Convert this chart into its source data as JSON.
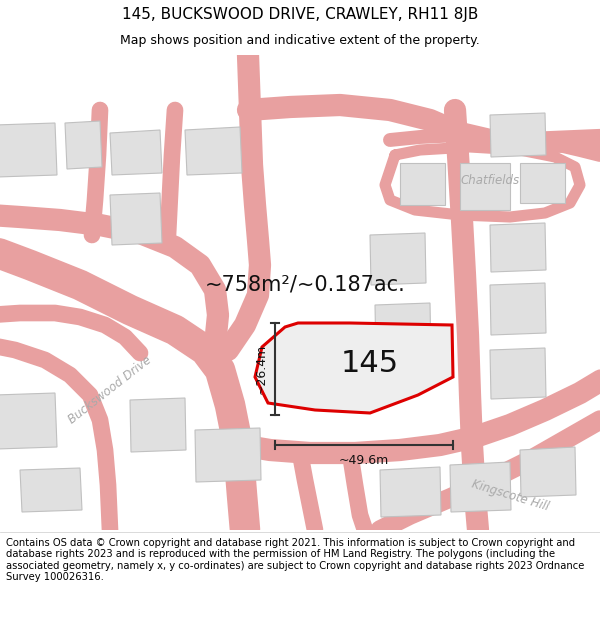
{
  "title": "145, BUCKSWOOD DRIVE, CRAWLEY, RH11 8JB",
  "subtitle": "Map shows position and indicative extent of the property.",
  "area_label": "~758m²/~0.187ac.",
  "plot_number": "145",
  "width_label": "~49.6m",
  "height_label": "~26.4m",
  "street_label_1": "Buckswood Drive",
  "street_label_2": "Chatfields",
  "street_label_3": "Kingscote Hill",
  "footer_text": "Contains OS data © Crown copyright and database right 2021. This information is subject to Crown copyright and database rights 2023 and is reproduced with the permission of HM Land Registry. The polygons (including the associated geometry, namely x, y co-ordinates) are subject to Crown copyright and database rights 2023 Ordnance Survey 100026316.",
  "road_color": "#e8a0a0",
  "building_color": "#e0e0e0",
  "building_ec": "#c0c0c0",
  "plot_outline_color": "#dd0000",
  "dim_line_color": "#333333",
  "title_fontsize": 11,
  "subtitle_fontsize": 9,
  "footer_fontsize": 7.2,
  "area_fontsize": 15,
  "number_fontsize": 22,
  "street_fontsize": 8.5,
  "map_bg": "#ffffff"
}
